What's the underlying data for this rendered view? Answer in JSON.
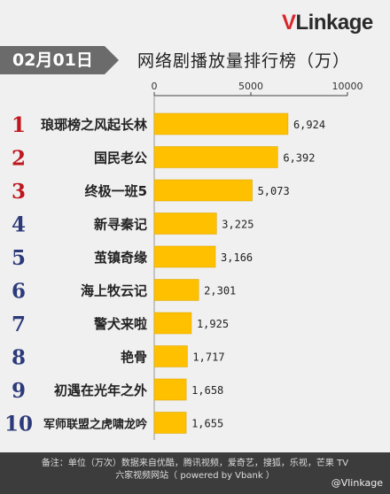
{
  "logo": {
    "v": "V",
    "rest": "Linkage"
  },
  "date_badge": "02月01日",
  "header_title": "网络剧播放量排行榜（万）",
  "chart_data": {
    "type": "bar",
    "orientation": "horizontal",
    "title": "网络剧播放量排行榜（万）",
    "xlim": [
      0,
      10000
    ],
    "ticks": [
      "0",
      "5000",
      "10000"
    ],
    "tick_values": [
      0,
      5000,
      10000
    ],
    "bar_color": "#ffc000",
    "rank_colors": [
      "#c0161e",
      "#c0161e",
      "#c0161e",
      "#2d3a7a",
      "#2d3a7a",
      "#2d3a7a",
      "#2d3a7a",
      "#2d3a7a",
      "#2d3a7a",
      "#2d3a7a"
    ],
    "ranks": [
      "1",
      "2",
      "3",
      "4",
      "5",
      "6",
      "7",
      "8",
      "9",
      "10"
    ],
    "categories": [
      "琅琊榜之风起长林",
      "国民老公",
      "终极一班5",
      "新寻秦记",
      "茧镇奇缘",
      "海上牧云记",
      "警犬来啦",
      "艳骨",
      "初遇在光年之外",
      "军师联盟之虎啸龙吟"
    ],
    "values": [
      6924,
      6392,
      5073,
      3225,
      3166,
      2301,
      1925,
      1717,
      1658,
      1655
    ],
    "value_labels": [
      "6,924",
      "6,392",
      "5,073",
      "3,225",
      "3,166",
      "2,301",
      "1,925",
      "1,717",
      "1,658",
      "1,655"
    ]
  },
  "footer": {
    "line1": "备注：单位（万次）数据来自优酷，腾讯视频，爱奇艺，搜狐，乐视，芒果 TV",
    "line2": "六家视频网站（ powered by Vbank ）"
  },
  "watermark": "@Vlinkage"
}
